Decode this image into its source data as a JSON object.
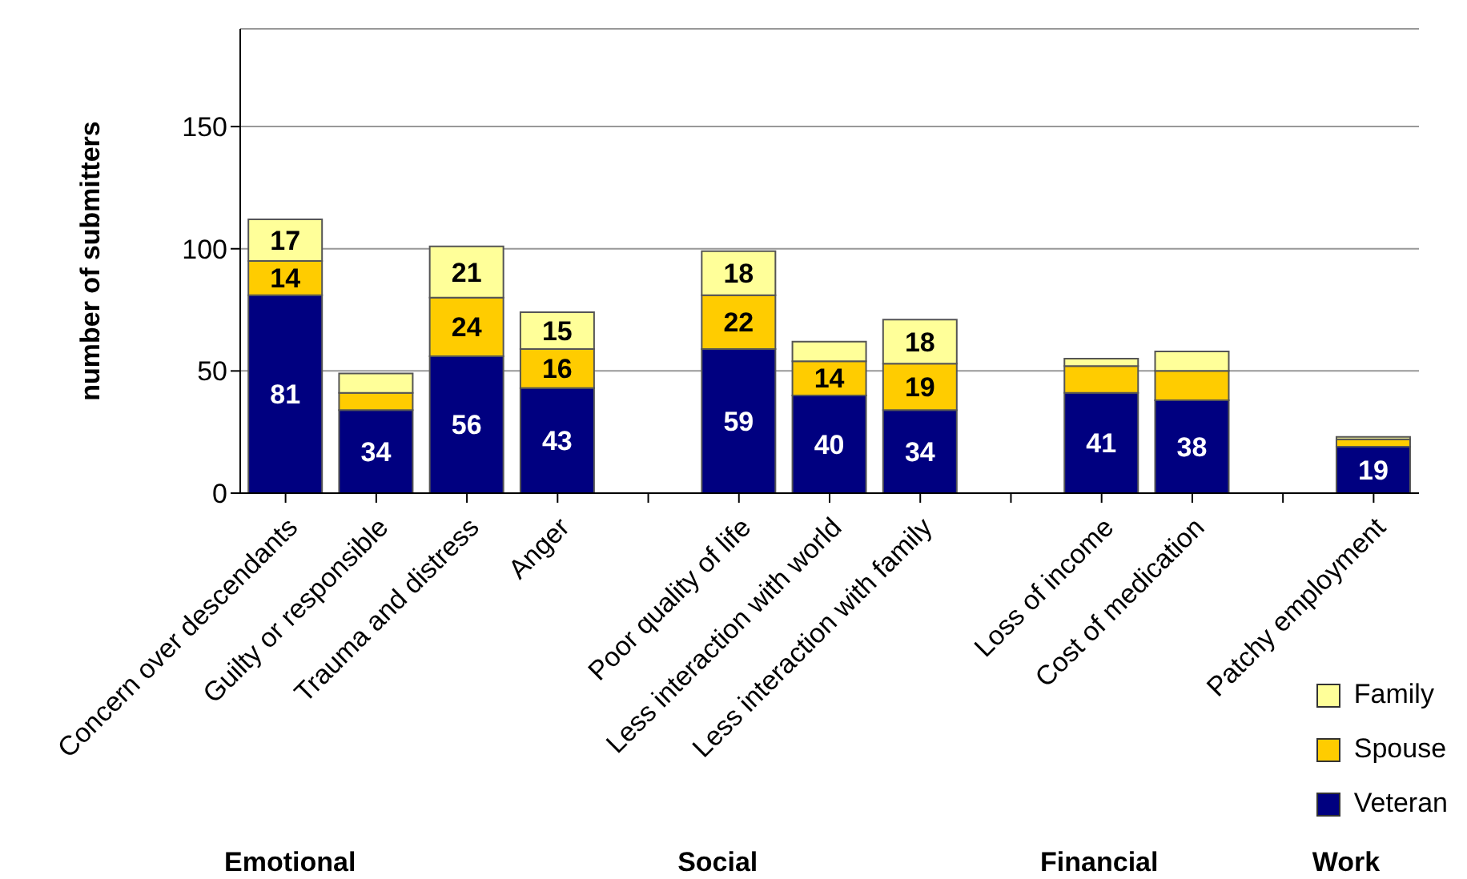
{
  "chart_data": {
    "type": "bar",
    "stacked": true,
    "ylabel": "number of submitters",
    "categories": [
      "Concern over descendants",
      "Guilty or responsible",
      "Trauma and distress",
      "Anger",
      null,
      "Poor quality of life",
      "Less interaction with world",
      "Less interaction with family",
      null,
      "Loss of income",
      "Cost of medication",
      null,
      "Patchy employment"
    ],
    "series": [
      {
        "name": "Veteran",
        "color": "#000080",
        "values": [
          81,
          34,
          56,
          43,
          null,
          59,
          40,
          34,
          null,
          41,
          38,
          null,
          19
        ],
        "value_labels": [
          "81",
          "34",
          "56",
          "43",
          null,
          "59",
          "40",
          "34",
          null,
          "41",
          "38",
          null,
          "19"
        ]
      },
      {
        "name": "Spouse",
        "color": "#ffcc00",
        "values": [
          14,
          7,
          24,
          16,
          null,
          22,
          14,
          19,
          null,
          11,
          12,
          null,
          3
        ],
        "value_labels": [
          "14",
          null,
          "24",
          "16",
          null,
          "22",
          "14",
          "19",
          null,
          null,
          null,
          null,
          null
        ]
      },
      {
        "name": "Family",
        "color": "#ffff99",
        "values": [
          17,
          8,
          21,
          15,
          null,
          18,
          8,
          18,
          null,
          3,
          8,
          null,
          1
        ],
        "value_labels": [
          "17",
          null,
          "21",
          "15",
          null,
          "18",
          null,
          "18",
          null,
          null,
          null,
          null,
          null
        ]
      }
    ],
    "ylim": [
      0,
      190
    ],
    "yticks": [
      0,
      50,
      100,
      150
    ],
    "grid": "y",
    "legend": "bottom right",
    "annotations": [
      "Emotional",
      "Social",
      "Financial",
      "Work"
    ]
  }
}
